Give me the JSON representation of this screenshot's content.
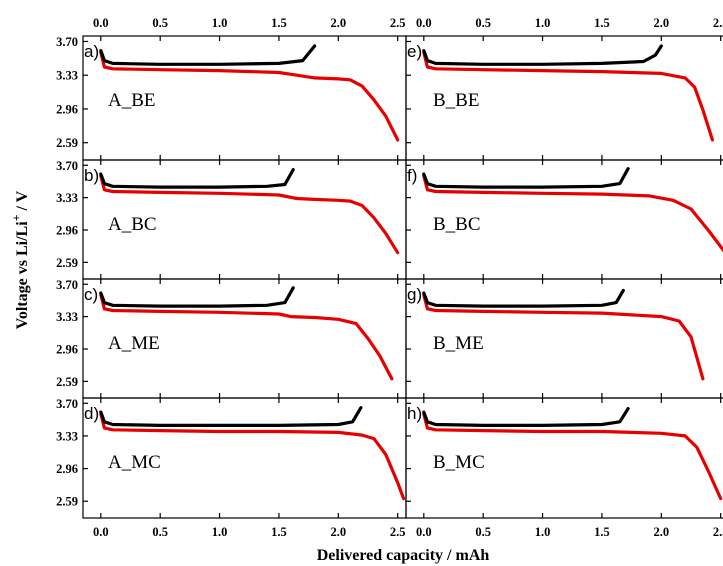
{
  "chart_data": {
    "type": "line",
    "xlabel": "Delivered capacity / mAh",
    "ylabel": "Voltage vs Li/Li",
    "ylabel_sup": "+",
    "ylabel_unit": " / V",
    "xlim": [
      -0.15,
      2.57
    ],
    "ylim": [
      2.4,
      3.76
    ],
    "x_ticks": [
      0.0,
      0.5,
      1.0,
      1.5,
      2.0,
      2.5
    ],
    "x_tick_labels": [
      "0.0",
      "0.5",
      "1.0",
      "1.5",
      "2.0",
      "2.5"
    ],
    "y_ticks": [
      3.7,
      3.33,
      2.96,
      2.59
    ],
    "y_tick_labels": [
      "3.70",
      "3.33",
      "2.96",
      "2.59"
    ],
    "series_colors": {
      "charge": "#000000",
      "discharge": "#e60000"
    },
    "panels": [
      {
        "letter": "a)",
        "label": "A_BE",
        "col": 0,
        "row": 0,
        "charge": [
          [
            0.0,
            3.6
          ],
          [
            0.03,
            3.49
          ],
          [
            0.1,
            3.46
          ],
          [
            0.5,
            3.45
          ],
          [
            1.0,
            3.45
          ],
          [
            1.5,
            3.46
          ],
          [
            1.7,
            3.49
          ],
          [
            1.8,
            3.65
          ]
        ],
        "discharge": [
          [
            0.0,
            3.58
          ],
          [
            0.03,
            3.42
          ],
          [
            0.1,
            3.4
          ],
          [
            0.5,
            3.39
          ],
          [
            1.0,
            3.38
          ],
          [
            1.5,
            3.36
          ],
          [
            1.65,
            3.33
          ],
          [
            1.8,
            3.3
          ],
          [
            2.0,
            3.29
          ],
          [
            2.1,
            3.28
          ],
          [
            2.2,
            3.21
          ],
          [
            2.3,
            3.06
          ],
          [
            2.4,
            2.88
          ],
          [
            2.5,
            2.62
          ]
        ]
      },
      {
        "letter": "b)",
        "label": "A_BC",
        "col": 0,
        "row": 1,
        "charge": [
          [
            0.0,
            3.6
          ],
          [
            0.03,
            3.49
          ],
          [
            0.1,
            3.46
          ],
          [
            0.5,
            3.45
          ],
          [
            1.0,
            3.45
          ],
          [
            1.4,
            3.46
          ],
          [
            1.55,
            3.48
          ],
          [
            1.62,
            3.65
          ]
        ],
        "discharge": [
          [
            0.0,
            3.58
          ],
          [
            0.03,
            3.42
          ],
          [
            0.1,
            3.4
          ],
          [
            0.5,
            3.39
          ],
          [
            1.0,
            3.38
          ],
          [
            1.5,
            3.36
          ],
          [
            1.65,
            3.32
          ],
          [
            1.8,
            3.31
          ],
          [
            2.0,
            3.3
          ],
          [
            2.1,
            3.29
          ],
          [
            2.2,
            3.24
          ],
          [
            2.3,
            3.1
          ],
          [
            2.4,
            2.92
          ],
          [
            2.5,
            2.7
          ]
        ]
      },
      {
        "letter": "c)",
        "label": "A_ME",
        "col": 0,
        "row": 2,
        "charge": [
          [
            0.0,
            3.6
          ],
          [
            0.03,
            3.49
          ],
          [
            0.1,
            3.46
          ],
          [
            0.5,
            3.45
          ],
          [
            1.0,
            3.45
          ],
          [
            1.4,
            3.46
          ],
          [
            1.55,
            3.49
          ],
          [
            1.62,
            3.66
          ]
        ],
        "discharge": [
          [
            0.0,
            3.58
          ],
          [
            0.03,
            3.42
          ],
          [
            0.1,
            3.4
          ],
          [
            0.5,
            3.39
          ],
          [
            1.0,
            3.38
          ],
          [
            1.5,
            3.36
          ],
          [
            1.6,
            3.33
          ],
          [
            1.8,
            3.32
          ],
          [
            2.0,
            3.3
          ],
          [
            2.15,
            3.25
          ],
          [
            2.25,
            3.08
          ],
          [
            2.35,
            2.88
          ],
          [
            2.45,
            2.62
          ]
        ]
      },
      {
        "letter": "d)",
        "label": "A_MC",
        "col": 0,
        "row": 3,
        "charge": [
          [
            0.0,
            3.6
          ],
          [
            0.03,
            3.49
          ],
          [
            0.1,
            3.46
          ],
          [
            0.5,
            3.45
          ],
          [
            1.0,
            3.45
          ],
          [
            1.5,
            3.45
          ],
          [
            2.0,
            3.46
          ],
          [
            2.12,
            3.49
          ],
          [
            2.19,
            3.65
          ]
        ],
        "discharge": [
          [
            0.0,
            3.58
          ],
          [
            0.03,
            3.42
          ],
          [
            0.1,
            3.4
          ],
          [
            0.5,
            3.39
          ],
          [
            1.0,
            3.38
          ],
          [
            1.5,
            3.38
          ],
          [
            2.0,
            3.37
          ],
          [
            2.2,
            3.34
          ],
          [
            2.3,
            3.3
          ],
          [
            2.4,
            3.12
          ],
          [
            2.5,
            2.8
          ],
          [
            2.55,
            2.62
          ]
        ]
      },
      {
        "letter": "e)",
        "label": "B_BE",
        "col": 1,
        "row": 0,
        "charge": [
          [
            0.0,
            3.6
          ],
          [
            0.03,
            3.49
          ],
          [
            0.1,
            3.46
          ],
          [
            0.5,
            3.45
          ],
          [
            1.0,
            3.45
          ],
          [
            1.5,
            3.46
          ],
          [
            1.85,
            3.48
          ],
          [
            1.95,
            3.55
          ],
          [
            2.0,
            3.65
          ]
        ],
        "discharge": [
          [
            0.0,
            3.58
          ],
          [
            0.03,
            3.42
          ],
          [
            0.1,
            3.4
          ],
          [
            0.5,
            3.39
          ],
          [
            1.0,
            3.38
          ],
          [
            1.5,
            3.37
          ],
          [
            2.0,
            3.35
          ],
          [
            2.2,
            3.3
          ],
          [
            2.28,
            3.2
          ],
          [
            2.35,
            2.95
          ],
          [
            2.43,
            2.62
          ]
        ]
      },
      {
        "letter": "f)",
        "label": "B_BC",
        "col": 1,
        "row": 1,
        "charge": [
          [
            0.0,
            3.6
          ],
          [
            0.03,
            3.49
          ],
          [
            0.1,
            3.46
          ],
          [
            0.5,
            3.45
          ],
          [
            1.0,
            3.45
          ],
          [
            1.5,
            3.46
          ],
          [
            1.65,
            3.49
          ],
          [
            1.72,
            3.66
          ]
        ],
        "discharge": [
          [
            0.0,
            3.58
          ],
          [
            0.03,
            3.42
          ],
          [
            0.1,
            3.4
          ],
          [
            0.5,
            3.39
          ],
          [
            1.0,
            3.38
          ],
          [
            1.5,
            3.37
          ],
          [
            1.9,
            3.35
          ],
          [
            2.1,
            3.3
          ],
          [
            2.25,
            3.2
          ],
          [
            2.4,
            2.95
          ],
          [
            2.55,
            2.68
          ]
        ]
      },
      {
        "letter": "g)",
        "label": "B_ME",
        "col": 1,
        "row": 2,
        "charge": [
          [
            0.0,
            3.6
          ],
          [
            0.03,
            3.49
          ],
          [
            0.1,
            3.46
          ],
          [
            0.5,
            3.45
          ],
          [
            1.0,
            3.45
          ],
          [
            1.5,
            3.46
          ],
          [
            1.62,
            3.49
          ],
          [
            1.68,
            3.63
          ]
        ],
        "discharge": [
          [
            0.0,
            3.58
          ],
          [
            0.03,
            3.42
          ],
          [
            0.1,
            3.4
          ],
          [
            0.5,
            3.39
          ],
          [
            1.0,
            3.38
          ],
          [
            1.5,
            3.37
          ],
          [
            2.0,
            3.33
          ],
          [
            2.15,
            3.28
          ],
          [
            2.25,
            3.1
          ],
          [
            2.35,
            2.62
          ]
        ]
      },
      {
        "letter": "h)",
        "label": "B_MC",
        "col": 1,
        "row": 3,
        "charge": [
          [
            0.0,
            3.6
          ],
          [
            0.03,
            3.49
          ],
          [
            0.1,
            3.46
          ],
          [
            0.5,
            3.45
          ],
          [
            1.0,
            3.45
          ],
          [
            1.5,
            3.46
          ],
          [
            1.65,
            3.49
          ],
          [
            1.72,
            3.64
          ]
        ],
        "discharge": [
          [
            0.0,
            3.58
          ],
          [
            0.03,
            3.42
          ],
          [
            0.1,
            3.4
          ],
          [
            0.5,
            3.39
          ],
          [
            1.0,
            3.38
          ],
          [
            1.5,
            3.38
          ],
          [
            2.0,
            3.36
          ],
          [
            2.2,
            3.33
          ],
          [
            2.3,
            3.2
          ],
          [
            2.4,
            2.92
          ],
          [
            2.5,
            2.62
          ]
        ]
      }
    ]
  }
}
